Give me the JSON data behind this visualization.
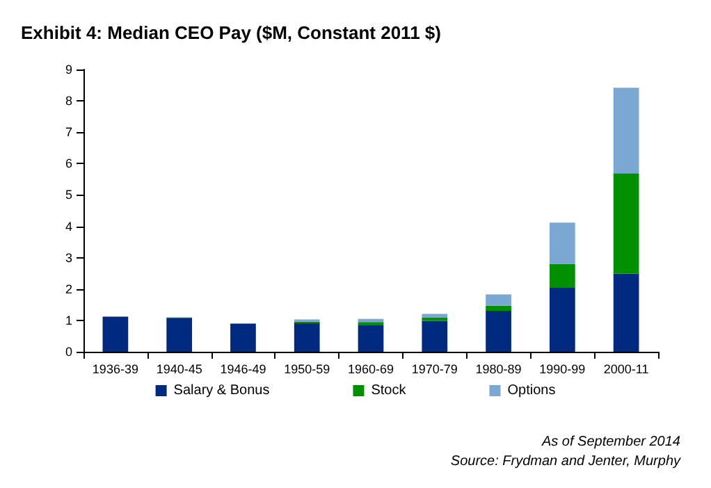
{
  "chart_data": {
    "type": "bar",
    "title": "Exhibit 4: Median CEO Pay ($M, Constant 2011 $)",
    "categories": [
      "1936-39",
      "1940-45",
      "1946-49",
      "1950-59",
      "1960-69",
      "1970-79",
      "1980-89",
      "1990-99",
      "2000-11"
    ],
    "stacked": true,
    "series": [
      {
        "name": "Salary & Bonus",
        "color": "#002a7f",
        "values": [
          1.12,
          1.08,
          0.9,
          0.91,
          0.84,
          0.98,
          1.31,
          2.04,
          2.49
        ]
      },
      {
        "name": "Stock",
        "color": "#009000",
        "values": [
          0,
          0.01,
          0,
          0.05,
          0.11,
          0.12,
          0.16,
          0.76,
          3.2
        ]
      },
      {
        "name": "Options",
        "color": "#7ba7d3",
        "values": [
          0,
          0.01,
          0,
          0.07,
          0.1,
          0.11,
          0.36,
          1.32,
          2.73
        ]
      }
    ],
    "ylim": [
      0,
      9
    ],
    "yticks": [
      0,
      1,
      2,
      3,
      4,
      5,
      6,
      7,
      8,
      9
    ],
    "grid": false,
    "legend": "bottom",
    "annotations": [
      "As of September 2014",
      "Source: Frydman and Jenter, Murphy"
    ]
  }
}
